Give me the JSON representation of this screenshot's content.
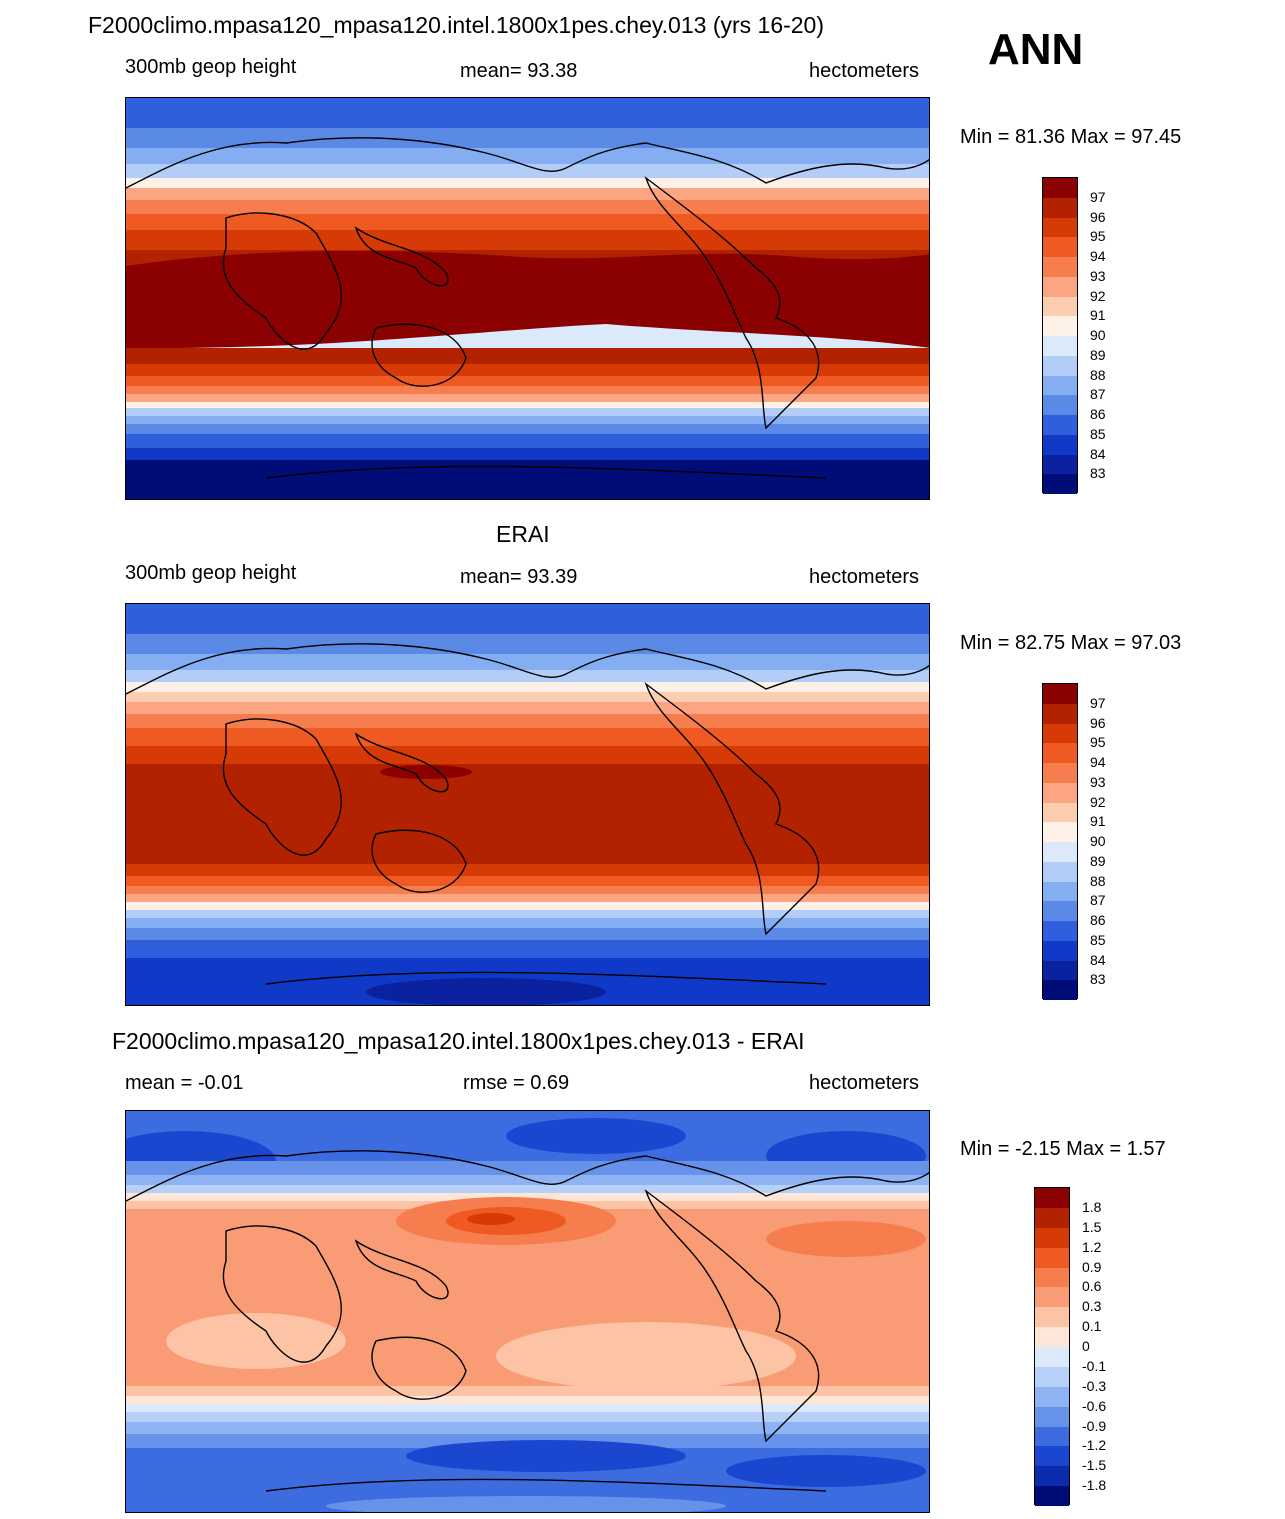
{
  "header": {
    "title": "F2000climo.mpasa120_mpasa120.intel.1800x1pes.chey.013 (yrs 16-20)",
    "season": "ANN"
  },
  "panels": [
    {
      "id": "model",
      "title": "",
      "left": "300mb geop height",
      "center": "mean=  93.38",
      "right": "hectometers",
      "minmax": "Min =  81.36 Max =  97.45",
      "labels": [
        "97",
        "96",
        "95",
        "94",
        "93",
        "92",
        "91",
        "90",
        "89",
        "88",
        "87",
        "86",
        "85",
        "84",
        "83"
      ]
    },
    {
      "id": "obs",
      "title": "ERAI",
      "left": "300mb geop height",
      "center": "mean=  93.39",
      "right": "hectometers",
      "minmax": "Min =  82.75 Max =  97.03",
      "labels": [
        "97",
        "96",
        "95",
        "94",
        "93",
        "92",
        "91",
        "90",
        "89",
        "88",
        "87",
        "86",
        "85",
        "84",
        "83"
      ]
    },
    {
      "id": "diff",
      "title": "F2000climo.mpasa120_mpasa120.intel.1800x1pes.chey.013 - ERAI",
      "left": "mean =  -0.01",
      "center": "rmse =   0.69",
      "right": "hectometers",
      "minmax": "Min =  -2.15 Max =   1.57",
      "labels": [
        "1.8",
        "1.5",
        "1.2",
        "0.9",
        "0.6",
        "0.3",
        "0.1",
        "0",
        "-0.1",
        "-0.3",
        "-0.6",
        "-0.9",
        "-1.2",
        "-1.5",
        "-1.8"
      ]
    }
  ],
  "colors": {
    "height": [
      "#8b0000",
      "#b22200",
      "#d63a06",
      "#ef5a22",
      "#f67d4e",
      "#fba582",
      "#fdcdb0",
      "#fdf0e6",
      "#dce9fb",
      "#b2cdf8",
      "#85adf1",
      "#5a8ae6",
      "#2f5fdc",
      "#0f39c6",
      "#0a22a0",
      "#000c78"
    ],
    "diff": [
      "#8b0000",
      "#b22200",
      "#d63a06",
      "#ef5a22",
      "#f67d4e",
      "#f99b75",
      "#fcc3a5",
      "#fde6d8",
      "#dce9fb",
      "#b7d0f8",
      "#8fb3f2",
      "#6692e9",
      "#3d6ce0",
      "#1b47d0",
      "#0b2aac",
      "#000c78"
    ]
  }
}
